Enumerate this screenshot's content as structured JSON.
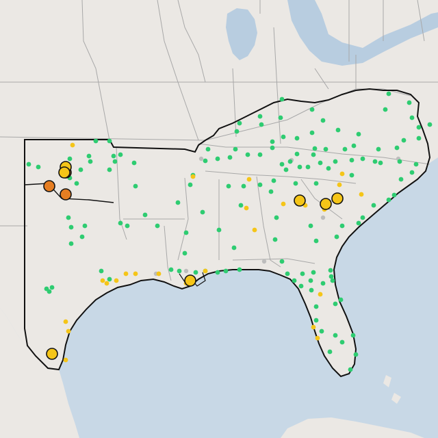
{
  "map": {
    "colors": {
      "water": "#c8d8e6",
      "land": "#ebe8e4",
      "state_line": "#a8a8a8",
      "region_outline": "#111111",
      "lake": "#b8cde0"
    },
    "legend_levels": [
      {
        "level": "good",
        "color": "#2ecc71"
      },
      {
        "level": "moderate",
        "color": "#f5c518"
      },
      {
        "level": "no-data",
        "color": "#bdbdbd"
      },
      {
        "level": "unhealthy-sensitive",
        "color": "#f5c518"
      },
      {
        "level": "unhealthy",
        "color": "#e67e22"
      }
    ]
  }
}
